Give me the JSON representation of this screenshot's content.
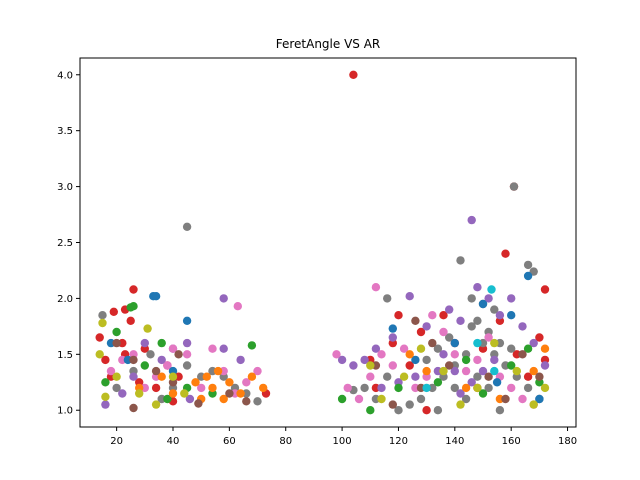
{
  "chart_data": {
    "type": "scatter",
    "title": "FeretAngle VS AR",
    "xlabel": "",
    "ylabel": "",
    "xlim": [
      7,
      183
    ],
    "ylim": [
      0.85,
      4.15
    ],
    "xticks": [
      20,
      40,
      60,
      80,
      100,
      120,
      140,
      160,
      180
    ],
    "yticks": [
      1.0,
      1.5,
      2.0,
      2.5,
      3.0,
      3.5,
      4.0
    ],
    "xtick_labels": [
      "20",
      "40",
      "60",
      "80",
      "100",
      "120",
      "140",
      "160",
      "180"
    ],
    "ytick_labels": [
      "1.0",
      "1.5",
      "2.0",
      "2.5",
      "3.0",
      "3.5",
      "4.0"
    ],
    "grid": false,
    "legend": "none",
    "colors": [
      "#1f77b4",
      "#ff7f0e",
      "#2ca02c",
      "#d62728",
      "#9467bd",
      "#8c564b",
      "#e377c2",
      "#7f7f7f",
      "#bcbd22",
      "#17becf"
    ],
    "series": [
      {
        "color": "#d62728",
        "points": [
          [
            104,
            4.0
          ],
          [
            161,
            3.0
          ],
          [
            158,
            2.4
          ],
          [
            26,
            2.08
          ],
          [
            172,
            2.08
          ],
          [
            23,
            1.9
          ],
          [
            19,
            1.88
          ],
          [
            25,
            1.8
          ],
          [
            14,
            1.65
          ],
          [
            22,
            1.6
          ],
          [
            30,
            1.55
          ],
          [
            38,
            1.4
          ],
          [
            18,
            1.3
          ],
          [
            23,
            1.5
          ],
          [
            120,
            1.85
          ],
          [
            128,
            1.7
          ],
          [
            136,
            1.85
          ],
          [
            140,
            1.6
          ],
          [
            150,
            1.55
          ],
          [
            162,
            1.5
          ],
          [
            170,
            1.65
          ],
          [
            172,
            1.45
          ],
          [
            166,
            1.3
          ],
          [
            73,
            1.15
          ],
          [
            130,
            1.0
          ],
          [
            112,
            1.2
          ],
          [
            28,
            1.25
          ],
          [
            16,
            1.45
          ],
          [
            34,
            1.2
          ],
          [
            40,
            1.08
          ],
          [
            42,
            1.3
          ],
          [
            148,
            1.2
          ],
          [
            156,
            1.8
          ],
          [
            110,
            1.45
          ],
          [
            118,
            1.6
          ],
          [
            124,
            1.4
          ]
        ]
      },
      {
        "color": "#7f7f7f",
        "points": [
          [
            45,
            2.64
          ],
          [
            161,
            3.0
          ],
          [
            142,
            2.34
          ],
          [
            166,
            2.3
          ],
          [
            168,
            2.24
          ],
          [
            116,
            2.0
          ],
          [
            146,
            2.0
          ],
          [
            150,
            1.95
          ],
          [
            154,
            1.9
          ],
          [
            148,
            1.8
          ],
          [
            152,
            1.7
          ],
          [
            156,
            1.6
          ],
          [
            160,
            1.55
          ],
          [
            144,
            1.5
          ],
          [
            140,
            1.4
          ],
          [
            136,
            1.3
          ],
          [
            132,
            1.2
          ],
          [
            128,
            1.1
          ],
          [
            124,
            1.05
          ],
          [
            120,
            1.0
          ],
          [
            112,
            1.1
          ],
          [
            108,
            1.2
          ],
          [
            104,
            1.18
          ],
          [
            116,
            1.3
          ],
          [
            130,
            1.45
          ],
          [
            134,
            1.55
          ],
          [
            138,
            1.65
          ],
          [
            146,
            1.75
          ],
          [
            150,
            1.6
          ],
          [
            154,
            1.5
          ],
          [
            158,
            1.4
          ],
          [
            162,
            1.3
          ],
          [
            166,
            1.2
          ],
          [
            170,
            1.1
          ],
          [
            15,
            1.85
          ],
          [
            20,
            1.2
          ],
          [
            26,
            1.35
          ],
          [
            32,
            1.5
          ],
          [
            36,
            1.1
          ],
          [
            40,
            1.2
          ],
          [
            45,
            1.4
          ],
          [
            50,
            1.3
          ],
          [
            54,
            1.35
          ],
          [
            58,
            1.3
          ],
          [
            62,
            1.2
          ],
          [
            66,
            1.15
          ],
          [
            70,
            1.08
          ],
          [
            148,
            1.3
          ],
          [
            152,
            1.2
          ],
          [
            144,
            1.1
          ],
          [
            156,
            1.0
          ],
          [
            134,
            1.0
          ],
          [
            140,
            1.2
          ]
        ]
      },
      {
        "color": "#9467bd",
        "points": [
          [
            146,
            2.7
          ],
          [
            58,
            2.0
          ],
          [
            148,
            2.1
          ],
          [
            124,
            2.02
          ],
          [
            152,
            2.0
          ],
          [
            138,
            1.9
          ],
          [
            156,
            1.85
          ],
          [
            160,
            2.0
          ],
          [
            164,
            1.75
          ],
          [
            142,
            1.8
          ],
          [
            130,
            1.75
          ],
          [
            118,
            1.65
          ],
          [
            112,
            1.55
          ],
          [
            108,
            1.45
          ],
          [
            104,
            1.4
          ],
          [
            100,
            1.45
          ],
          [
            134,
            1.35
          ],
          [
            126,
            1.3
          ],
          [
            120,
            1.25
          ],
          [
            114,
            1.2
          ],
          [
            45,
            1.6
          ],
          [
            40,
            1.55
          ],
          [
            36,
            1.45
          ],
          [
            30,
            1.6
          ],
          [
            26,
            1.3
          ],
          [
            22,
            1.15
          ],
          [
            16,
            1.05
          ],
          [
            64,
            1.45
          ],
          [
            58,
            1.55
          ],
          [
            46,
            1.1
          ],
          [
            154,
            1.45
          ],
          [
            150,
            1.35
          ],
          [
            146,
            1.25
          ],
          [
            142,
            1.15
          ],
          [
            168,
            1.6
          ],
          [
            172,
            1.4
          ],
          [
            140,
            1.35
          ],
          [
            136,
            1.5
          ]
        ]
      },
      {
        "color": "#e377c2",
        "points": [
          [
            112,
            2.1
          ],
          [
            63,
            1.93
          ],
          [
            54,
            1.55
          ],
          [
            40,
            1.55
          ],
          [
            45,
            1.5
          ],
          [
            38,
            1.4
          ],
          [
            34,
            1.3
          ],
          [
            30,
            1.2
          ],
          [
            26,
            1.5
          ],
          [
            22,
            1.45
          ],
          [
            18,
            1.35
          ],
          [
            50,
            1.2
          ],
          [
            58,
            1.35
          ],
          [
            62,
            1.15
          ],
          [
            66,
            1.25
          ],
          [
            70,
            1.35
          ],
          [
            98,
            1.5
          ],
          [
            102,
            1.2
          ],
          [
            106,
            1.1
          ],
          [
            110,
            1.3
          ],
          [
            114,
            1.5
          ],
          [
            118,
            1.4
          ],
          [
            122,
            1.55
          ],
          [
            132,
            1.85
          ],
          [
            136,
            1.7
          ],
          [
            140,
            1.5
          ],
          [
            144,
            1.35
          ],
          [
            148,
            1.45
          ],
          [
            152,
            1.65
          ],
          [
            156,
            1.3
          ],
          [
            160,
            1.2
          ],
          [
            164,
            1.1
          ],
          [
            168,
            1.05
          ],
          [
            126,
            1.2
          ],
          [
            130,
            1.3
          ]
        ]
      },
      {
        "color": "#2ca02c",
        "points": [
          [
            26,
            1.93
          ],
          [
            25,
            1.92
          ],
          [
            20,
            1.7
          ],
          [
            36,
            1.6
          ],
          [
            45,
            1.2
          ],
          [
            54,
            1.15
          ],
          [
            68,
            1.58
          ],
          [
            100,
            1.1
          ],
          [
            110,
            1.0
          ],
          [
            120,
            1.2
          ],
          [
            134,
            1.25
          ],
          [
            144,
            1.45
          ],
          [
            150,
            1.15
          ],
          [
            160,
            1.4
          ],
          [
            166,
            1.55
          ],
          [
            170,
            1.25
          ],
          [
            30,
            1.4
          ],
          [
            38,
            1.1
          ],
          [
            16,
            1.25
          ]
        ]
      },
      {
        "color": "#1f77b4",
        "points": [
          [
            33,
            2.02
          ],
          [
            34,
            2.02
          ],
          [
            45,
            1.8
          ],
          [
            166,
            2.2
          ],
          [
            118,
            1.73
          ],
          [
            150,
            1.95
          ],
          [
            160,
            1.85
          ],
          [
            170,
            1.1
          ],
          [
            40,
            1.35
          ],
          [
            24,
            1.45
          ],
          [
            18,
            1.6
          ],
          [
            126,
            1.45
          ],
          [
            140,
            1.6
          ],
          [
            155,
            1.25
          ]
        ]
      },
      {
        "color": "#ff7f0e",
        "points": [
          [
            58,
            1.1
          ],
          [
            52,
            1.3
          ],
          [
            54,
            1.2
          ],
          [
            60,
            1.25
          ],
          [
            64,
            1.15
          ],
          [
            68,
            1.3
          ],
          [
            72,
            1.2
          ],
          [
            50,
            1.1
          ],
          [
            56,
            1.35
          ],
          [
            48,
            1.25
          ],
          [
            40,
            1.15
          ],
          [
            36,
            1.3
          ],
          [
            28,
            1.2
          ],
          [
            124,
            1.5
          ],
          [
            130,
            1.35
          ],
          [
            144,
            1.2
          ],
          [
            156,
            1.1
          ],
          [
            168,
            1.35
          ],
          [
            172,
            1.55
          ]
        ]
      },
      {
        "color": "#8c564b",
        "points": [
          [
            49,
            1.06
          ],
          [
            20,
            1.6
          ],
          [
            26,
            1.45
          ],
          [
            34,
            1.35
          ],
          [
            40,
            1.25
          ],
          [
            26,
            1.02
          ],
          [
            42,
            1.5
          ],
          [
            126,
            1.8
          ],
          [
            132,
            1.6
          ],
          [
            138,
            1.4
          ],
          [
            128,
            1.2
          ],
          [
            118,
            1.05
          ],
          [
            152,
            1.3
          ],
          [
            158,
            1.1
          ],
          [
            164,
            1.5
          ],
          [
            170,
            1.3
          ],
          [
            112,
            1.4
          ],
          [
            60,
            1.15
          ],
          [
            66,
            1.08
          ]
        ]
      },
      {
        "color": "#bcbd22",
        "points": [
          [
            31,
            1.73
          ],
          [
            16,
            1.12
          ],
          [
            15,
            1.78
          ],
          [
            20,
            1.3
          ],
          [
            28,
            1.15
          ],
          [
            34,
            1.05
          ],
          [
            40,
            1.3
          ],
          [
            44,
            1.15
          ],
          [
            110,
            1.4
          ],
          [
            114,
            1.1
          ],
          [
            122,
            1.3
          ],
          [
            128,
            1.55
          ],
          [
            136,
            1.35
          ],
          [
            142,
            1.05
          ],
          [
            148,
            1.2
          ],
          [
            154,
            1.6
          ],
          [
            162,
            1.35
          ],
          [
            168,
            1.05
          ],
          [
            172,
            1.2
          ],
          [
            14,
            1.5
          ]
        ]
      },
      {
        "color": "#17becf",
        "points": [
          [
            153,
            2.08
          ],
          [
            148,
            1.6
          ],
          [
            154,
            1.35
          ],
          [
            130,
            1.2
          ]
        ]
      }
    ]
  }
}
